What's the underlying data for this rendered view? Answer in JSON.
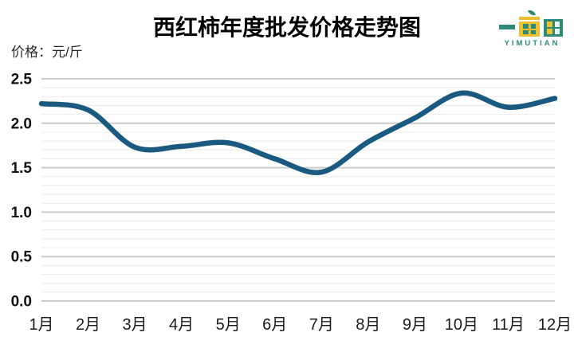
{
  "title": "西红柿年度批发价格走势图",
  "y_axis_unit": "价格：元/斤",
  "logo": {
    "text": "YIMUTIAN",
    "teal": "#2e8a76",
    "yellow": "#efbf32",
    "window_light": "#eaf4f0"
  },
  "chart_data": {
    "type": "line",
    "title": "西红柿年度批发价格走势图",
    "ylabel": "价格：元/斤",
    "xlabel": "",
    "categories": [
      "1月",
      "2月",
      "3月",
      "4月",
      "5月",
      "6月",
      "7月",
      "8月",
      "9月",
      "10月",
      "11月",
      "12月"
    ],
    "values": [
      2.22,
      2.15,
      1.73,
      1.74,
      1.78,
      1.6,
      1.45,
      1.79,
      2.06,
      2.34,
      2.18,
      2.28
    ],
    "ylim": [
      0,
      2.5
    ],
    "y_major_step": 0.5,
    "y_minor_step": 0.1,
    "y_tick_labels": [
      "0.0",
      "0.5",
      "1.0",
      "1.5",
      "2.0",
      "2.5"
    ],
    "grid": true,
    "legend": false,
    "smooth": true,
    "line_color": "#1a5a81",
    "major_grid_color": "#cccccc",
    "minor_grid_color": "#ececec",
    "axis_text_color": "#1a1a1a"
  }
}
